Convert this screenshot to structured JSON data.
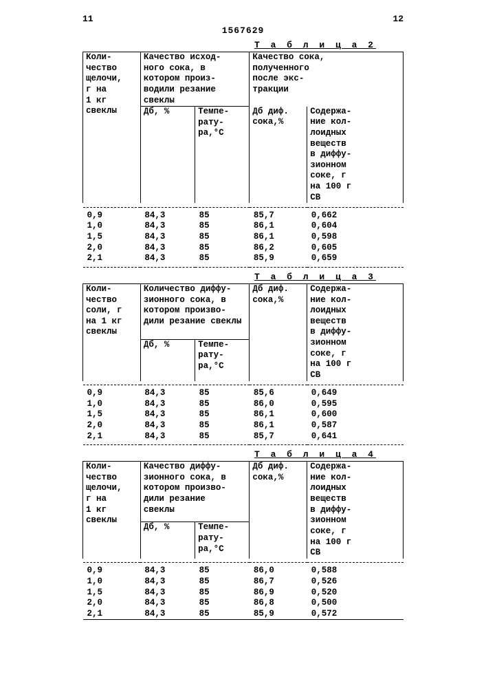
{
  "page_left": "11",
  "page_right": "12",
  "doc_number": "1567629",
  "tables": [
    {
      "caption": "Т а б л и ц а 2",
      "col1_header": "Коли-\nчество\nщелочи,\nг на\n1 кг\nсвеклы",
      "group2_header": "Качество исход-\nного сока, в\nкотором произ-\nводили резание\nсвеклы",
      "group3_header": "Качество сока,\nполученного\nпосле экс-\nтракции",
      "sub_db": "Дб, %",
      "sub_temp": "Темпе-\nрату-\nра,°С",
      "col4_header": "Дб диф.\nсока,%",
      "col5_header": "Содержа-\nние кол-\nлоидных\nвеществ\nв диффу-\nзионном\nсоке, г\nна 100 г\nСВ",
      "rows": [
        [
          "0,9",
          "84,3",
          "85",
          "85,7",
          "0,662"
        ],
        [
          "1,0",
          "84,3",
          "85",
          "86,1",
          "0,604"
        ],
        [
          "1,5",
          "84,3",
          "85",
          "86,1",
          "0,598"
        ],
        [
          "2,0",
          "84,3",
          "85",
          "86,2",
          "0,605"
        ],
        [
          "2,1",
          "84,3",
          "85",
          "85,9",
          "0,659"
        ]
      ]
    },
    {
      "caption": "Т а б л и ц а 3",
      "col1_header": "Коли-\nчество\nсоли, г\nна 1 кг\nсвеклы",
      "group2_header": "Количество диффу-\nзионного сока, в\nкотором произво-\nдили резание свеклы",
      "sub_db": "Дб, %",
      "sub_temp": "Темпе-\nрату-\nра,°С",
      "col4_header": "Дб диф.\nсока,%",
      "col5_header": "Содержа-\nние кол-\nлоидных\nвеществ\nв диффу-\nзионном\nсоке, г\nна 100 г\nСВ",
      "rows": [
        [
          "0,9",
          "84,3",
          "85",
          "85,6",
          "0,649"
        ],
        [
          "1,0",
          "84,3",
          "85",
          "86,0",
          "0,595"
        ],
        [
          "1,5",
          "84,3",
          "85",
          "86,1",
          "0,600"
        ],
        [
          "2,0",
          "84,3",
          "85",
          "86,1",
          "0,587"
        ],
        [
          "2,1",
          "84,3",
          "85",
          "85,7",
          "0,641"
        ]
      ]
    },
    {
      "caption": "Т а б л и ц а 4",
      "col1_header": "Коли-\nчество\nщелочи,\nг на\n1 кг\nсвеклы",
      "group2_header": "Качество диффу-\nзионного сока, в\nкотором произво-\nдили резание\nсвеклы",
      "sub_db": "Дб, %",
      "sub_temp": "Темпе-\nрату-\nра,°С",
      "col4_header": "Дб диф.\nсока,%",
      "col5_header": "Содержа-\nние кол-\nлоидных\nвеществ\nв диффу-\nзионном\nсоке, г\nна 100 г\nСВ",
      "rows": [
        [
          "0,9",
          "84,3",
          "85",
          "86,0",
          "0,588"
        ],
        [
          "1,0",
          "84,3",
          "85",
          "86,7",
          "0,526"
        ],
        [
          "1,5",
          "84,3",
          "85",
          "86,9",
          "0,520"
        ],
        [
          "2,0",
          "84,3",
          "85",
          "86,8",
          "0,500"
        ],
        [
          "2,1",
          "84,3",
          "85",
          "85,9",
          "0,572"
        ]
      ]
    }
  ]
}
